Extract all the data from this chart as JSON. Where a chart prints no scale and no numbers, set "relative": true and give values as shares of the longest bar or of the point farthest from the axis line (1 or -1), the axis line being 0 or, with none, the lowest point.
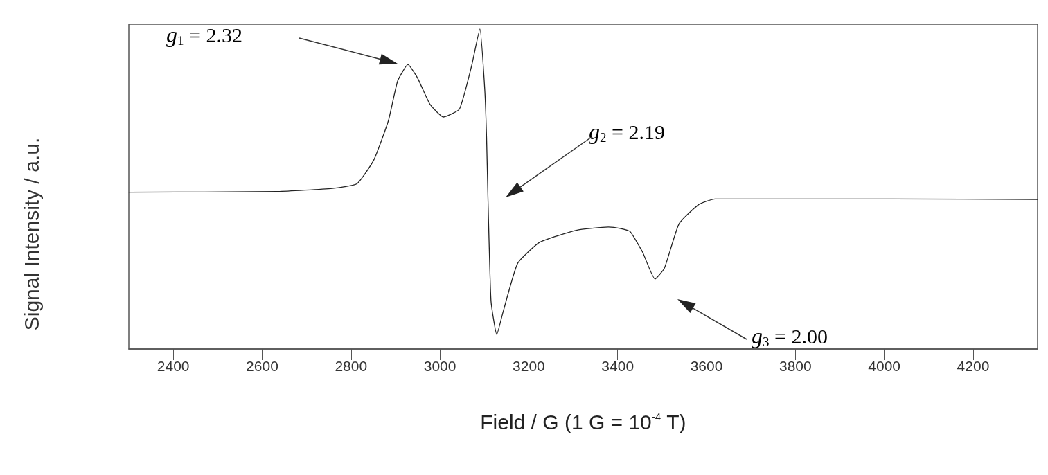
{
  "chart_data": {
    "type": "line",
    "relative": true,
    "xlabel": "Field / G (1 G = 10$^{-4}$ T)",
    "ylabel": "Signal Intensity / a.u.",
    "xlim": [
      2300,
      4345
    ],
    "xticks": [
      2400,
      2600,
      2800,
      3000,
      3200,
      3400,
      3600,
      3800,
      4000,
      4200
    ],
    "grid": false,
    "marker": "none",
    "line_style": "solid",
    "series": [
      {
        "color": "#222222",
        "x": [
          2300,
          2635,
          2758,
          2813,
          2851,
          2884,
          2905,
          2928,
          2950,
          2978,
          3008,
          3044,
          3071,
          3090,
          3101,
          3105,
          3108,
          3115,
          3128,
          3142,
          3175,
          3225,
          3307,
          3379,
          3405,
          3428,
          3456,
          3484,
          3505,
          3538,
          3582,
          3619,
          3712,
          4019,
          4345
        ],
        "values": [
          0.49,
          0.492,
          0.502,
          0.516,
          0.59,
          0.713,
          0.838,
          0.889,
          0.846,
          0.764,
          0.725,
          0.75,
          0.883,
          1.0,
          0.809,
          0.662,
          0.48,
          0.15,
          0.045,
          0.115,
          0.268,
          0.334,
          0.371,
          0.381,
          0.377,
          0.367,
          0.303,
          0.219,
          0.252,
          0.391,
          0.451,
          0.469,
          0.469,
          0.469,
          0.467
        ]
      }
    ],
    "annotations": [
      "g$_{1}$ = 2.32",
      "g$_{2}$ = 2.19",
      "g$_{3}$ = 2.00"
    ]
  }
}
